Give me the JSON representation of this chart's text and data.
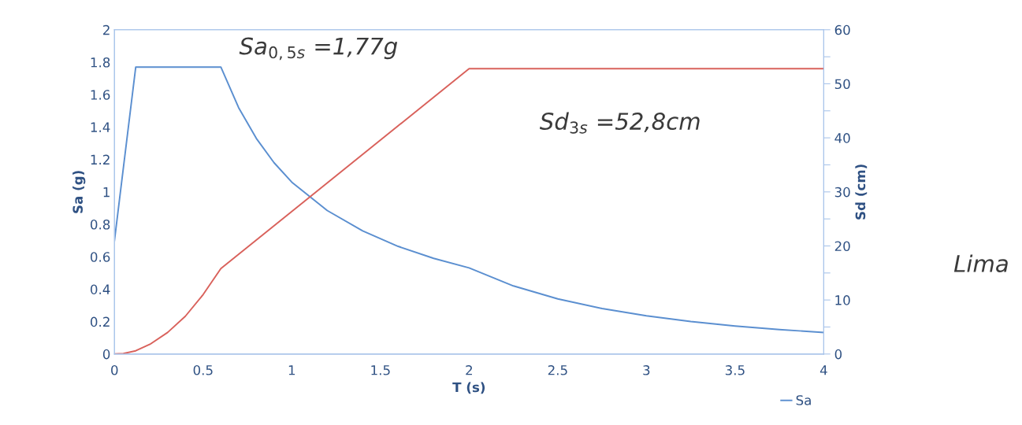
{
  "chart_data": {
    "type": "line",
    "xlabel": "T (s)",
    "ylabel": "Sa (g)",
    "y2label": "Sd (cm)",
    "xlim": [
      0,
      4
    ],
    "xticks": [
      0,
      0.5,
      1,
      1.5,
      2,
      2.5,
      3,
      3.5,
      4
    ],
    "ylim": [
      0,
      2
    ],
    "yticks": [
      0,
      0.2,
      0.4,
      0.6,
      0.8,
      1,
      1.2,
      1.4,
      1.6,
      1.8,
      2
    ],
    "y2lim": [
      0,
      60
    ],
    "y2ticks": [
      0,
      {
        "value": 5,
        "label": null
      },
      10,
      {
        "value": 15,
        "label": null
      },
      20,
      {
        "value": 25,
        "label": null
      },
      30,
      {
        "value": 35,
        "label": null
      },
      40,
      {
        "value": 45,
        "label": null
      },
      50,
      {
        "value": 55,
        "label": null
      },
      60
    ],
    "grid": false,
    "legend": "bottom right",
    "marker": "none",
    "line_style": "solid",
    "series": [
      {
        "name": "Sa",
        "color": "#5b8fd0",
        "x": [
          0,
          0.12,
          0.6,
          0.7,
          0.8,
          0.9,
          1.0,
          1.2,
          1.4,
          1.6,
          1.8,
          2.0,
          2.25,
          2.5,
          2.75,
          3.0,
          3.25,
          3.5,
          3.75,
          4.0
        ],
        "values": [
          0.7,
          1.77,
          1.77,
          1.52,
          1.33,
          1.18,
          1.06,
          0.885,
          0.759,
          0.664,
          0.59,
          0.531,
          0.42,
          0.34,
          0.281,
          0.236,
          0.201,
          0.173,
          0.151,
          0.133
        ]
      },
      {
        "color": "#d9625c",
        "axis": "y2",
        "x": [
          0,
          0.05,
          0.12,
          0.2,
          0.3,
          0.4,
          0.5,
          0.6,
          2.0,
          4.0
        ],
        "values": [
          0,
          0.1,
          0.6,
          1.8,
          4.0,
          7.0,
          11.0,
          15.8,
          52.8,
          52.8
        ]
      }
    ],
    "annotations": [
      "Sa$_{0,5s}$ =1,77g",
      "Sd$_{3s}$ =52,8cm",
      "Lima"
    ]
  }
}
